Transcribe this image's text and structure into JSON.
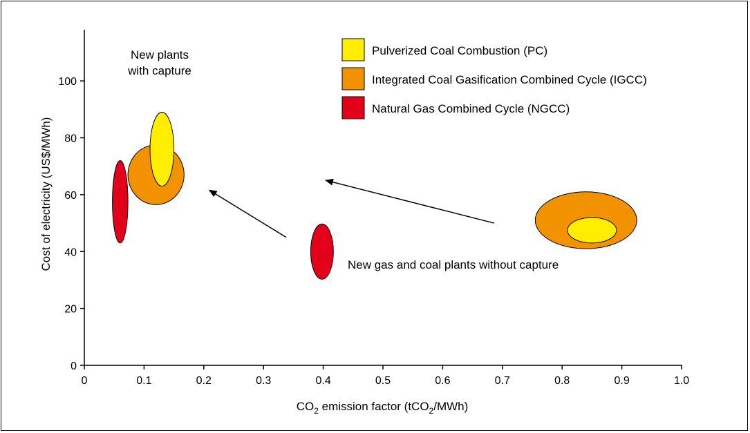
{
  "chart_data": {
    "type": "scatter",
    "title": "",
    "xlabel": {
      "pre": "CO",
      "sub": "2",
      "mid": " emission factor (tCO",
      "sub2": "2",
      "post": "/MWh)"
    },
    "ylabel": "Cost of electricity (US$/MWh)",
    "xlim": [
      0,
      1.0
    ],
    "ylim": [
      0,
      118
    ],
    "x_ticks": [
      {
        "value": 0,
        "label": "0"
      },
      {
        "value": 0.1,
        "label": "0.1"
      },
      {
        "value": 0.2,
        "label": "0.2"
      },
      {
        "value": 0.3,
        "label": "0.3"
      },
      {
        "value": 0.4,
        "label": "0.4"
      },
      {
        "value": 0.5,
        "label": "0.5"
      },
      {
        "value": 0.6,
        "label": "0.6"
      },
      {
        "value": 0.7,
        "label": "0.7"
      },
      {
        "value": 0.8,
        "label": "0.8"
      },
      {
        "value": 0.9,
        "label": "0.9"
      },
      {
        "value": 1.0,
        "label": "1.0"
      }
    ],
    "y_ticks": [
      {
        "value": 0,
        "label": "0"
      },
      {
        "value": 20,
        "label": "20"
      },
      {
        "value": 40,
        "label": "40"
      },
      {
        "value": 60,
        "label": "60"
      },
      {
        "value": 80,
        "label": "80"
      },
      {
        "value": 100,
        "label": "100"
      }
    ],
    "grid": false,
    "legend_position": "top-right",
    "series": [
      {
        "name": "Pulverized Coal Combustion (PC)",
        "color": "#ffee00",
        "regions": [
          {
            "cx": 0.13,
            "cy": 76,
            "rx": 0.02,
            "ry": 13
          },
          {
            "cx": 0.85,
            "cy": 47.5,
            "rx": 0.041,
            "ry": 4.5
          }
        ]
      },
      {
        "name": "Integrated Coal Gasification Combined Cycle (IGCC)",
        "color": "#f39200",
        "regions": [
          {
            "cx": 0.12,
            "cy": 67,
            "rx": 0.047,
            "ry": 10.5
          },
          {
            "cx": 0.84,
            "cy": 51,
            "rx": 0.085,
            "ry": 10
          }
        ]
      },
      {
        "name": "Natural Gas Combined Cycle (NGCC)",
        "color": "#e2001a",
        "regions": [
          {
            "cx": 0.06,
            "cy": 57.5,
            "rx": 0.013,
            "ry": 14.5
          },
          {
            "cx": 0.398,
            "cy": 40,
            "rx": 0.019,
            "ry": 9.7
          }
        ]
      }
    ],
    "annotations": {
      "with_capture": [
        "New plants",
        "with capture"
      ],
      "without_capture": "New gas and coal plants without capture"
    },
    "arrows": [
      {
        "from": [
          0.338,
          45
        ],
        "to": [
          0.21,
          61.5
        ]
      },
      {
        "from": [
          0.686,
          50
        ],
        "to": [
          0.405,
          65
        ]
      }
    ]
  }
}
